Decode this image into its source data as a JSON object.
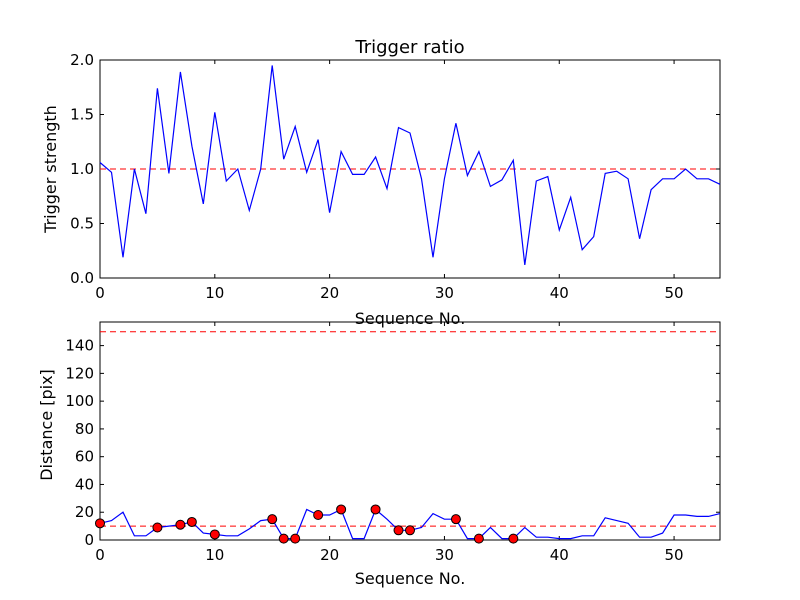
{
  "chart_data": [
    {
      "type": "line",
      "title": "Trigger ratio",
      "xlabel": "Sequence No.",
      "ylabel": "Trigger strength",
      "xlim": [
        0,
        54
      ],
      "ylim": [
        0,
        2.0
      ],
      "xticks": [
        0,
        10,
        20,
        30,
        40,
        50
      ],
      "xtick_labels": [
        "0",
        "10",
        "20",
        "30",
        "40",
        "50"
      ],
      "yticks": [
        0,
        0.5,
        1.0,
        1.5,
        2.0
      ],
      "ytick_labels": [
        "0.0",
        "0.5",
        "1.0",
        "1.5",
        "2.0"
      ],
      "colors": {
        "line": "#0000ff",
        "threshold": "#ff0000"
      },
      "threshold": 1.0,
      "series": [
        {
          "name": "Trigger strength",
          "x": [
            0,
            1,
            2,
            3,
            4,
            5,
            6,
            7,
            8,
            9,
            10,
            11,
            12,
            13,
            14,
            15,
            16,
            17,
            18,
            19,
            20,
            21,
            22,
            23,
            24,
            25,
            26,
            27,
            28,
            29,
            30,
            31,
            32,
            33,
            34,
            35,
            36,
            37,
            38,
            39,
            40,
            41,
            42,
            43,
            44,
            45,
            46,
            47,
            48,
            49,
            50,
            51,
            52,
            53,
            54
          ],
          "values": [
            1.06,
            0.97,
            0.19,
            1.0,
            0.59,
            1.74,
            0.96,
            1.89,
            1.21,
            0.68,
            1.52,
            0.89,
            1.0,
            0.62,
            1.0,
            1.95,
            1.09,
            1.39,
            0.97,
            1.27,
            0.6,
            1.16,
            0.95,
            0.95,
            1.11,
            0.82,
            1.38,
            1.33,
            0.91,
            0.19,
            0.91,
            1.42,
            0.94,
            1.16,
            0.84,
            0.9,
            1.08,
            0.12,
            0.89,
            0.93,
            0.44,
            0.74,
            0.26,
            0.38,
            0.96,
            0.98,
            0.91,
            0.36,
            0.81,
            0.91,
            0.91,
            1.0,
            0.91,
            0.91,
            0.86
          ]
        }
      ]
    },
    {
      "type": "line",
      "title": "",
      "xlabel": "Sequence No.",
      "ylabel": "Distance [pix]",
      "xlim": [
        0,
        54
      ],
      "ylim": [
        0,
        157
      ],
      "xticks": [
        0,
        10,
        20,
        30,
        40,
        50
      ],
      "xtick_labels": [
        "0",
        "10",
        "20",
        "30",
        "40",
        "50"
      ],
      "yticks": [
        0,
        20,
        40,
        60,
        80,
        100,
        120,
        140
      ],
      "ytick_labels": [
        "0",
        "20",
        "40",
        "60",
        "80",
        "100",
        "120",
        "140"
      ],
      "colors": {
        "line": "#0000ff",
        "threshold": "#ff0000",
        "marker": "#ff0000"
      },
      "thresholds": [
        10,
        150
      ],
      "series": [
        {
          "name": "Distance",
          "x": [
            0,
            1,
            2,
            3,
            4,
            5,
            6,
            7,
            8,
            9,
            10,
            11,
            12,
            13,
            14,
            15,
            16,
            17,
            18,
            19,
            20,
            21,
            22,
            23,
            24,
            25,
            26,
            27,
            28,
            29,
            30,
            31,
            32,
            33,
            34,
            35,
            36,
            37,
            38,
            39,
            40,
            41,
            42,
            43,
            44,
            45,
            46,
            47,
            48,
            49,
            50,
            51,
            52,
            53,
            54
          ],
          "values": [
            12,
            14,
            20,
            3,
            3,
            9,
            10,
            11,
            13,
            5,
            4,
            3,
            3,
            8,
            14,
            15,
            1,
            1,
            22,
            18,
            18,
            22,
            1,
            1,
            22,
            15,
            7,
            7,
            9,
            19,
            15,
            15,
            1,
            1,
            9,
            1,
            1,
            9,
            2,
            2,
            1,
            1,
            3,
            3,
            16,
            14,
            12,
            2,
            2,
            5,
            18,
            18,
            17,
            17,
            19
          ]
        },
        {
          "name": "Flagged points",
          "x": [
            0,
            5,
            7,
            8,
            10,
            15,
            16,
            17,
            19,
            21,
            24,
            26,
            27,
            31,
            33,
            36
          ],
          "values": [
            12,
            9,
            11,
            13,
            4,
            15,
            1,
            1,
            18,
            22,
            22,
            7,
            7,
            15,
            1,
            1
          ]
        }
      ]
    }
  ]
}
